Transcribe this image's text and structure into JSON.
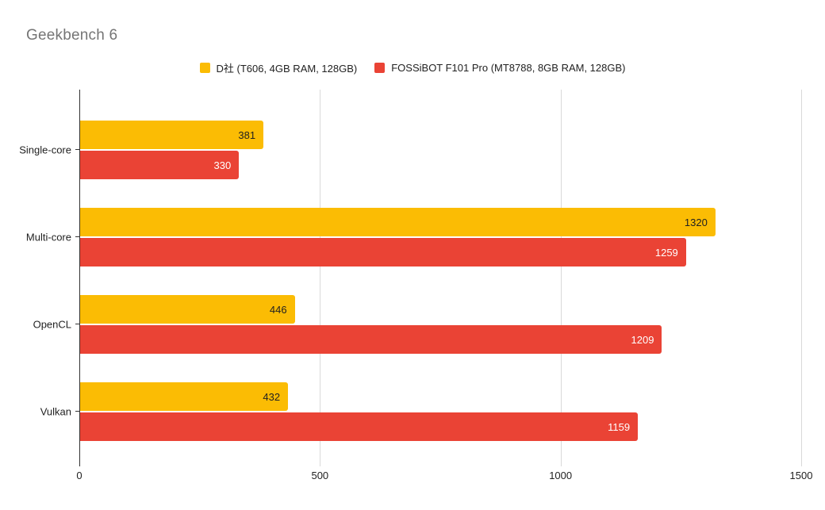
{
  "title": "Geekbench 6",
  "colors": {
    "series1": "#FBBC04",
    "series2": "#EA4335",
    "title_text": "#757575",
    "grid": "#d9d9d9",
    "axis": "#333333",
    "label_text": "#222222"
  },
  "chart_data": {
    "type": "bar",
    "orientation": "horizontal",
    "title": "Geekbench 6",
    "categories": [
      "Single-core",
      "Multi-core",
      "OpenCL",
      "Vulkan"
    ],
    "series": [
      {
        "name": "D社 (T606, 4GB RAM, 128GB)",
        "color": "#FBBC04",
        "label_color": "#212121",
        "values": [
          381,
          1320,
          446,
          432
        ]
      },
      {
        "name": "FOSSiBOT F101 Pro (MT8788, 8GB RAM, 128GB)",
        "color": "#EA4335",
        "label_color": "#FFFFFF",
        "values": [
          330,
          1259,
          1209,
          1159
        ]
      }
    ],
    "x_axis": {
      "min": 0,
      "max": 1500,
      "ticks": [
        0,
        500,
        1000,
        1500
      ]
    },
    "grid": true,
    "legend_position": "top"
  }
}
